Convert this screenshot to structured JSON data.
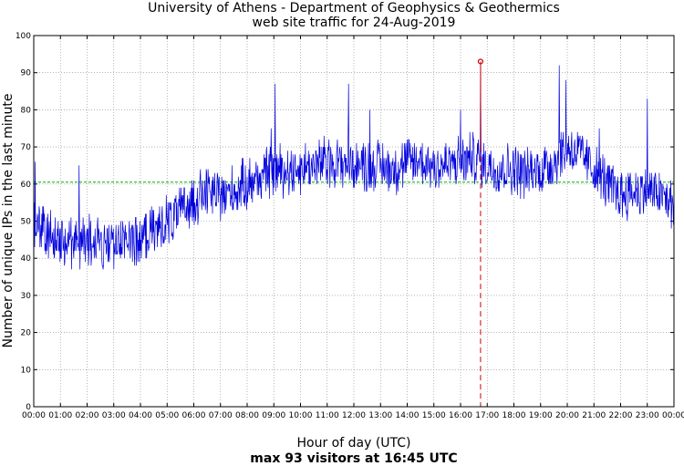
{
  "chart_data": {
    "type": "line",
    "title": "University of Athens - Department of Geophysics & Geothermics",
    "subtitle": "web site traffic for 24-Aug-2019",
    "xlabel": "Hour of day (UTC)",
    "ylabel": "Number of unique IPs in the last minute",
    "summary": "max 93 visitors at 16:45 UTC",
    "ylim": [
      0,
      100
    ],
    "xlim_hours": [
      0,
      24
    ],
    "grid": true,
    "y_ticks": [
      "0",
      "10",
      "20",
      "30",
      "40",
      "50",
      "60",
      "70",
      "80",
      "90",
      "100"
    ],
    "x_ticks": [
      "00:00",
      "01:00",
      "02:00",
      "03:00",
      "04:00",
      "05:00",
      "06:00",
      "07:00",
      "08:00",
      "09:00",
      "10:00",
      "11:00",
      "12:00",
      "13:00",
      "14:00",
      "15:00",
      "16:00",
      "17:00",
      "18:00",
      "19:00",
      "20:00",
      "21:00",
      "22:00",
      "23:00",
      "00:00"
    ],
    "mean_line": 60.5,
    "max": {
      "time": "16:45",
      "hour": 16.75,
      "value": 93
    },
    "series": [
      {
        "hour": [
          0,
          0.5,
          1,
          1.5,
          2,
          2.5,
          3,
          3.5,
          4,
          4.5,
          5,
          5.5,
          6,
          6.5,
          7,
          7.5,
          8,
          8.5,
          9,
          9.5,
          10,
          10.5,
          11,
          11.5,
          12,
          12.5,
          13,
          13.5,
          14,
          14.5,
          15,
          15.5,
          16,
          16.5,
          17,
          17.5,
          18,
          18.5,
          19,
          19.5,
          20,
          20.5,
          21,
          21.5,
          22,
          22.5,
          23,
          23.5,
          24
        ],
        "values": [
          50,
          47,
          45,
          44,
          45,
          44,
          45,
          44,
          45,
          47,
          50,
          52,
          56,
          58,
          57,
          58,
          60,
          62,
          64,
          64,
          64,
          65,
          66,
          66,
          65,
          65,
          65,
          64,
          66,
          66,
          65,
          65,
          66,
          67,
          65,
          64,
          64,
          63,
          64,
          66,
          70,
          68,
          64,
          60,
          57,
          58,
          58,
          57,
          54
        ],
        "peaks": [
          [
            0.05,
            66
          ],
          [
            1.7,
            65
          ],
          [
            8.9,
            75
          ],
          [
            9.05,
            87
          ],
          [
            11.8,
            87
          ],
          [
            12.6,
            80
          ],
          [
            16.0,
            80
          ],
          [
            16.75,
            93
          ],
          [
            19.7,
            92
          ],
          [
            19.95,
            88
          ],
          [
            21.2,
            75
          ],
          [
            23.0,
            83
          ]
        ],
        "amplitude": 6
      }
    ],
    "colors": {
      "line": "#0000dd",
      "mean": "#00b000",
      "max": "#cc0000",
      "grid": "#888888"
    }
  }
}
